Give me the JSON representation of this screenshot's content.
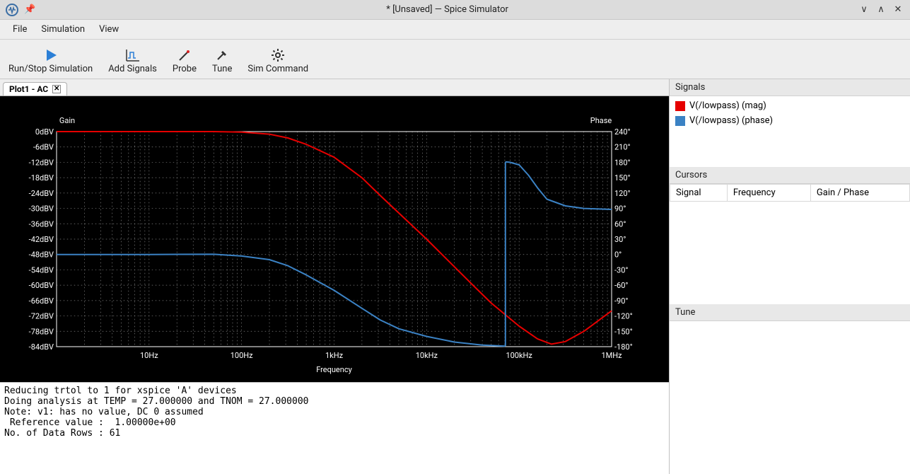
{
  "window": {
    "title": "* [Unsaved] — Spice Simulator"
  },
  "menu": {
    "file": "File",
    "simulation": "Simulation",
    "view": "View"
  },
  "toolbar": {
    "run": "Run/Stop Simulation",
    "add": "Add Signals",
    "probe": "Probe",
    "tune": "Tune",
    "sim": "Sim Command"
  },
  "tab": {
    "label": "Plot1 - AC"
  },
  "plot": {
    "bg": "#000000",
    "grid_color": "#808080",
    "axis_text_color": "#ffffff",
    "label_font_size": 11,
    "gain_title": "Gain",
    "phase_title": "Phase",
    "xlabel": "Frequency",
    "x_axis": {
      "log": true,
      "min_exp": 0,
      "max_exp": 6,
      "tick_labels": [
        "10Hz",
        "100Hz",
        "1kHz",
        "10kHz",
        "100kHz",
        "1MHz"
      ],
      "tick_exps": [
        1,
        2,
        3,
        4,
        5,
        6
      ]
    },
    "y_left": {
      "min": -84,
      "max": 0,
      "step": 6,
      "labels": [
        "0dBV",
        "-6dBV",
        "-12dBV",
        "-18dBV",
        "-24dBV",
        "-30dBV",
        "-36dBV",
        "-42dBV",
        "-48dBV",
        "-54dBV",
        "-60dBV",
        "-66dBV",
        "-72dBV",
        "-78dBV",
        "-84dBV"
      ]
    },
    "y_right": {
      "min": -180,
      "max": 240,
      "step": 30,
      "labels": [
        "240°",
        "210°",
        "180°",
        "150°",
        "120°",
        "90°",
        "60°",
        "30°",
        "0°",
        "-30°",
        "-60°",
        "-90°",
        "-120°",
        "-150°",
        "-180°"
      ]
    },
    "series": {
      "mag": {
        "name": "V(/lowpass) (mag)",
        "color": "#e60000",
        "width": 2,
        "points_db": [
          [
            0.0,
            0
          ],
          [
            1.0,
            0
          ],
          [
            1.7,
            0
          ],
          [
            2.0,
            -0.2
          ],
          [
            2.3,
            -1
          ],
          [
            2.5,
            -2.5
          ],
          [
            2.7,
            -5
          ],
          [
            3.0,
            -10
          ],
          [
            3.3,
            -18
          ],
          [
            3.5,
            -25
          ],
          [
            4.0,
            -42
          ],
          [
            4.5,
            -60
          ],
          [
            4.7,
            -67
          ],
          [
            5.0,
            -76
          ],
          [
            5.2,
            -81
          ],
          [
            5.35,
            -83
          ],
          [
            5.5,
            -82
          ],
          [
            5.7,
            -78
          ],
          [
            6.0,
            -70
          ]
        ]
      },
      "phase": {
        "name": "V(/lowpass) (phase)",
        "color": "#3b82c4",
        "width": 2,
        "points_deg": [
          [
            0.0,
            0
          ],
          [
            1.0,
            0
          ],
          [
            1.7,
            0.5
          ],
          [
            2.0,
            -3
          ],
          [
            2.3,
            -10
          ],
          [
            2.5,
            -22
          ],
          [
            2.7,
            -40
          ],
          [
            3.0,
            -70
          ],
          [
            3.3,
            -105
          ],
          [
            3.5,
            -128
          ],
          [
            3.7,
            -145
          ],
          [
            4.0,
            -160
          ],
          [
            4.3,
            -171
          ],
          [
            4.6,
            -177
          ],
          [
            4.85,
            -179
          ],
          [
            4.852,
            181
          ],
          [
            4.9,
            180
          ],
          [
            5.0,
            175
          ],
          [
            5.1,
            155
          ],
          [
            5.2,
            130
          ],
          [
            5.3,
            108
          ],
          [
            5.5,
            95
          ],
          [
            5.7,
            90
          ],
          [
            6.0,
            88
          ]
        ]
      }
    }
  },
  "console": {
    "lines": [
      "Reducing trtol to 1 for xspice 'A' devices",
      "Doing analysis at TEMP = 27.000000 and TNOM = 27.000000",
      "Note: v1: has no value, DC 0 assumed",
      " Reference value :  1.00000e+00",
      "No. of Data Rows : 61"
    ]
  },
  "panels": {
    "signals_title": "Signals",
    "cursors_title": "Cursors",
    "cursors_cols": [
      "Signal",
      "Frequency",
      "Gain / Phase"
    ],
    "tune_title": "Tune"
  }
}
